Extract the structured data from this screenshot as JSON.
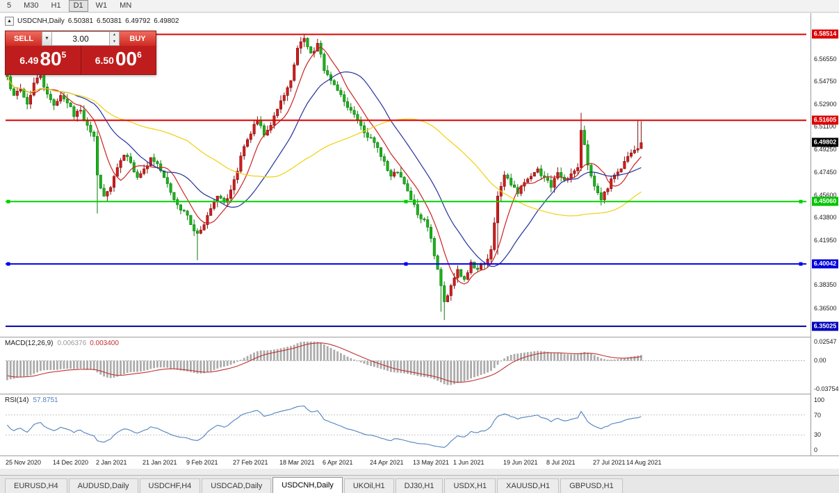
{
  "toolbar": {
    "timeframes": [
      {
        "label": "5",
        "active": false
      },
      {
        "label": "M30",
        "active": false
      },
      {
        "label": "H1",
        "active": false
      },
      {
        "label": "D1",
        "active": true
      },
      {
        "label": "W1",
        "active": false
      },
      {
        "label": "MN",
        "active": false
      }
    ]
  },
  "chart_header": {
    "symbol": "USDCNH,Daily",
    "open": "6.50381",
    "high": "6.50381",
    "low": "6.49792",
    "close": "6.49802"
  },
  "trade_panel": {
    "sell_label": "SELL",
    "buy_label": "BUY",
    "lot_value": "3.00",
    "sell_price": {
      "prefix": "6.49",
      "big": "80",
      "sup": "5"
    },
    "buy_price": {
      "prefix": "6.50",
      "big": "00",
      "sup": "6"
    }
  },
  "chart_data": {
    "type": "candlestick",
    "symbol": "USDCNH",
    "period": "Daily",
    "n_bars": 191,
    "total_slots": 240,
    "price_range": [
      6.3435,
      6.6005
    ],
    "up_means": "red (bullish)",
    "down_means": "green (bearish)",
    "close_anchors": [
      [
        0,
        6.551
      ],
      [
        2,
        6.536
      ],
      [
        4,
        6.541
      ],
      [
        6,
        6.529
      ],
      [
        8,
        6.546
      ],
      [
        10,
        6.552
      ],
      [
        12,
        6.537
      ],
      [
        14,
        6.528
      ],
      [
        16,
        6.536
      ],
      [
        18,
        6.53
      ],
      [
        20,
        6.519
      ],
      [
        22,
        6.524
      ],
      [
        24,
        6.512
      ],
      [
        26,
        6.503
      ],
      [
        27,
        6.472
      ],
      [
        29,
        6.455
      ],
      [
        31,
        6.462
      ],
      [
        33,
        6.478
      ],
      [
        35,
        6.488
      ],
      [
        37,
        6.482
      ],
      [
        39,
        6.47
      ],
      [
        41,
        6.477
      ],
      [
        43,
        6.486
      ],
      [
        45,
        6.481
      ],
      [
        47,
        6.47
      ],
      [
        49,
        6.458
      ],
      [
        51,
        6.448
      ],
      [
        53,
        6.443
      ],
      [
        55,
        6.432
      ],
      [
        57,
        6.425
      ],
      [
        59,
        6.432
      ],
      [
        61,
        6.445
      ],
      [
        63,
        6.455
      ],
      [
        65,
        6.45
      ],
      [
        67,
        6.46
      ],
      [
        69,
        6.475
      ],
      [
        71,
        6.495
      ],
      [
        73,
        6.505
      ],
      [
        75,
        6.516
      ],
      [
        77,
        6.504
      ],
      [
        79,
        6.512
      ],
      [
        81,
        6.525
      ],
      [
        83,
        6.536
      ],
      [
        85,
        6.548
      ],
      [
        87,
        6.574
      ],
      [
        89,
        6.582
      ],
      [
        91,
        6.57
      ],
      [
        93,
        6.578
      ],
      [
        95,
        6.556
      ],
      [
        97,
        6.548
      ],
      [
        99,
        6.54
      ],
      [
        101,
        6.531
      ],
      [
        103,
        6.524
      ],
      [
        105,
        6.516
      ],
      [
        107,
        6.506
      ],
      [
        109,
        6.502
      ],
      [
        111,
        6.494
      ],
      [
        113,
        6.483
      ],
      [
        115,
        6.471
      ],
      [
        117,
        6.474
      ],
      [
        119,
        6.465
      ],
      [
        121,
        6.452
      ],
      [
        123,
        6.44
      ],
      [
        125,
        6.436
      ],
      [
        127,
        6.421
      ],
      [
        129,
        6.396
      ],
      [
        131,
        6.37
      ],
      [
        133,
        6.383
      ],
      [
        135,
        6.396
      ],
      [
        137,
        6.388
      ],
      [
        139,
        6.402
      ],
      [
        141,
        6.396
      ],
      [
        143,
        6.4
      ],
      [
        145,
        6.412
      ],
      [
        147,
        6.455
      ],
      [
        149,
        6.472
      ],
      [
        151,
        6.464
      ],
      [
        153,
        6.457
      ],
      [
        155,
        6.466
      ],
      [
        157,
        6.471
      ],
      [
        159,
        6.477
      ],
      [
        161,
        6.47
      ],
      [
        163,
        6.462
      ],
      [
        165,
        6.474
      ],
      [
        167,
        6.468
      ],
      [
        169,
        6.473
      ],
      [
        171,
        6.478
      ],
      [
        172,
        6.508
      ],
      [
        174,
        6.48
      ],
      [
        176,
        6.463
      ],
      [
        178,
        6.452
      ],
      [
        180,
        6.461
      ],
      [
        182,
        6.472
      ],
      [
        184,
        6.477
      ],
      [
        186,
        6.487
      ],
      [
        188,
        6.492
      ],
      [
        190,
        6.498
      ]
    ],
    "wick_overrides": {
      "0": {
        "high": 6.5655
      },
      "27": {
        "low": 6.441
      },
      "57": {
        "low": 6.4035
      },
      "88": {
        "high": 6.58
      },
      "89": {
        "high": 6.58514
      },
      "93": {
        "high": 6.5815
      },
      "130": {
        "low": 6.362
      },
      "131": {
        "low": 6.3553
      },
      "147": {
        "low": 6.408
      },
      "172": {
        "high": 6.522
      },
      "189": {
        "high": 6.5155
      },
      "190": {
        "high": 6.5152
      }
    },
    "candle_colors": {
      "up_fill": "#d41c1c",
      "up_stroke": "#7c0f0f",
      "down_fill": "#1cb31c",
      "down_stroke": "#0a7a0a"
    },
    "moving_averages": [
      {
        "period": 8,
        "color": "#cc2020"
      },
      {
        "period": 21,
        "color": "#20309c"
      },
      {
        "period": 55,
        "color": "#f2d00a"
      }
    ],
    "hlines": [
      {
        "price": 6.58514,
        "label": "6.58514",
        "color": "#dd0000",
        "width": 2,
        "badge_bg": "#dd0000",
        "badge_fg": "#ffffff",
        "handles": false
      },
      {
        "price": 6.51605,
        "label": "6.51605",
        "color": "#dd0000",
        "width": 2,
        "badge_bg": "#dd0000",
        "badge_fg": "#ffffff",
        "handles": false
      },
      {
        "price": 6.4506,
        "label": "6.45060",
        "color": "#00d400",
        "width": 2,
        "badge_bg": "#00c400",
        "badge_fg": "#ffffff",
        "handles": true
      },
      {
        "price": 6.40042,
        "label": "6.40042",
        "color": "#0000ee",
        "width": 2,
        "badge_bg": "#0000dd",
        "badge_fg": "#ffffff",
        "handles": true
      },
      {
        "price": 6.35025,
        "label": "6.35025",
        "color": "#0000aa",
        "width": 2,
        "badge_bg": "#0000bb",
        "badge_fg": "#ffffff",
        "handles": false
      }
    ],
    "current_price": {
      "value": 6.49802,
      "label": "6.49802",
      "badge_bg": "#000000",
      "badge_fg": "#ffffff"
    },
    "y_ticks": [
      {
        "v": 6.5655,
        "label": "6.56550"
      },
      {
        "v": 6.5475,
        "label": "6.54750"
      },
      {
        "v": 6.529,
        "label": "6.52900"
      },
      {
        "v": 6.511,
        "label": "6.51100"
      },
      {
        "v": 6.4925,
        "label": "6.49250"
      },
      {
        "v": 6.4745,
        "label": "6.47450"
      },
      {
        "v": 6.456,
        "label": "6.45600"
      },
      {
        "v": 6.438,
        "label": "6.43800"
      },
      {
        "v": 6.4195,
        "label": "6.41950"
      },
      {
        "v": 6.3835,
        "label": "6.38350"
      },
      {
        "v": 6.365,
        "label": "6.36500"
      }
    ],
    "x_labels": [
      {
        "label": "25 Nov 2020",
        "i": 0
      },
      {
        "label": "14 Dec 2020",
        "i": 14
      },
      {
        "label": "2 Jan 2021",
        "i": 27
      },
      {
        "label": "21 Jan 2021",
        "i": 41
      },
      {
        "label": "9 Feb 2021",
        "i": 54
      },
      {
        "label": "27 Feb 2021",
        "i": 68
      },
      {
        "label": "18 Mar 2021",
        "i": 82
      },
      {
        "label": "6 Apr 2021",
        "i": 95
      },
      {
        "label": "24 Apr 2021",
        "i": 109
      },
      {
        "label": "13 May 2021",
        "i": 122
      },
      {
        "label": "1 Jun 2021",
        "i": 134
      },
      {
        "label": "19 Jun 2021",
        "i": 149
      },
      {
        "label": "8 Jul 2021",
        "i": 162
      },
      {
        "label": "27 Jul 2021",
        "i": 176
      },
      {
        "label": "14 Aug 2021",
        "i": 186
      }
    ],
    "macd": {
      "name": "MACD(12,26,9)",
      "value_main": "0.006376",
      "value_signal": "0.003400",
      "range": [
        -0.03754,
        0.02547
      ],
      "axis": [
        {
          "v": 0.02547,
          "label": "0.02547"
        },
        {
          "v": 0,
          "label": "0.00"
        },
        {
          "v": -0.03754,
          "label": "-0.03754"
        }
      ],
      "hist_color": "#ababab",
      "signal_color": "#c03030"
    },
    "rsi": {
      "name": "RSI(14)",
      "value": "57.8751",
      "period": 14,
      "levels": [
        70,
        30
      ],
      "axis": [
        {
          "v": 100,
          "label": "100"
        },
        {
          "v": 70,
          "label": "70"
        },
        {
          "v": 30,
          "label": "30"
        },
        {
          "v": 0,
          "label": "0"
        }
      ],
      "color": "#4f81bd",
      "level_color": "#c4c4c4"
    }
  },
  "bottom_tabs": [
    {
      "label": "EURUSD,H4",
      "active": false
    },
    {
      "label": "AUDUSD,Daily",
      "active": false
    },
    {
      "label": "USDCHF,H4",
      "active": false
    },
    {
      "label": "USDCAD,Daily",
      "active": false
    },
    {
      "label": "USDCNH,Daily",
      "active": true
    },
    {
      "label": "UKOil,H1",
      "active": false
    },
    {
      "label": "DJ30,H1",
      "active": false
    },
    {
      "label": "USDX,H1",
      "active": false
    },
    {
      "label": "XAUUSD,H1",
      "active": false
    },
    {
      "label": "GBPUSD,H1",
      "active": false
    }
  ]
}
